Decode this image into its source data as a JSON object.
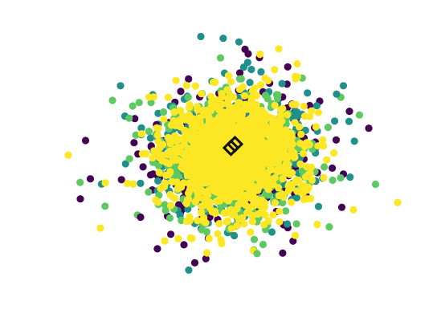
{
  "chart_data": {
    "type": "scatter",
    "title": "",
    "xlabel": "",
    "ylabel": "",
    "axes_visible": false,
    "grid": false,
    "legend": "none",
    "xlim": [
      -4.6,
      4.6
    ],
    "ylim": [
      -4.0,
      3.7
    ],
    "point_radius_units": "marker-medium",
    "seed": 20240611,
    "series": [
      {
        "name": "",
        "color": "#440154",
        "count": 380,
        "sx": 1.05,
        "sy": 0.95
      },
      {
        "name": "",
        "color": "#21908d",
        "count": 420,
        "sx": 1.0,
        "sy": 0.9
      },
      {
        "name": "",
        "color": "#5ec962",
        "count": 560,
        "sx": 0.92,
        "sy": 0.85
      },
      {
        "name": "",
        "color": "#fde725",
        "count": 1300,
        "sx": 0.82,
        "sy": 0.78
      }
    ],
    "outliers": [
      {
        "x": -0.8,
        "y": 3.25,
        "color": "#21908d"
      },
      {
        "x": 0.15,
        "y": 3.1,
        "color": "#21908d"
      },
      {
        "x": 0.3,
        "y": 2.9,
        "color": "#440154"
      },
      {
        "x": 1.6,
        "y": 2.5,
        "color": "#fde725"
      },
      {
        "x": -4.1,
        "y": 0.0,
        "color": "#fde725"
      },
      {
        "x": 4.1,
        "y": -1.3,
        "color": "#fde725"
      },
      {
        "x": 3.55,
        "y": -0.8,
        "color": "#5ec962"
      },
      {
        "x": -3.55,
        "y": -0.65,
        "color": "#440154"
      },
      {
        "x": -3.3,
        "y": -2.0,
        "color": "#fde725"
      },
      {
        "x": -1.1,
        "y": -3.15,
        "color": "#21908d"
      },
      {
        "x": -0.95,
        "y": -2.95,
        "color": "#440154"
      },
      {
        "x": 0.6,
        "y": -2.7,
        "color": "#5ec962"
      },
      {
        "x": 0.75,
        "y": -2.45,
        "color": "#5ec962"
      },
      {
        "x": -1.7,
        "y": -2.35,
        "color": "#fde725"
      },
      {
        "x": 1.55,
        "y": -2.2,
        "color": "#fde725"
      },
      {
        "x": -3.8,
        "y": -1.2,
        "color": "#440154"
      },
      {
        "x": -3.0,
        "y": 1.5,
        "color": "#5ec962"
      },
      {
        "x": 2.9,
        "y": 1.2,
        "color": "#440154"
      },
      {
        "x": 2.75,
        "y": 1.9,
        "color": "#21908d"
      },
      {
        "x": 3.15,
        "y": 1.1,
        "color": "#5ec962"
      },
      {
        "x": -2.8,
        "y": 1.9,
        "color": "#21908d"
      },
      {
        "x": 3.0,
        "y": -1.5,
        "color": "#fde725"
      },
      {
        "x": -2.3,
        "y": -1.7,
        "color": "#440154"
      },
      {
        "x": 2.1,
        "y": -1.9,
        "color": "#fde725"
      }
    ],
    "center_marker": {
      "shape": "diamond",
      "color": "#111111",
      "points": [
        {
          "x": 0.05,
          "y": 0.3
        },
        {
          "x": -0.05,
          "y": 0.2
        }
      ]
    }
  }
}
